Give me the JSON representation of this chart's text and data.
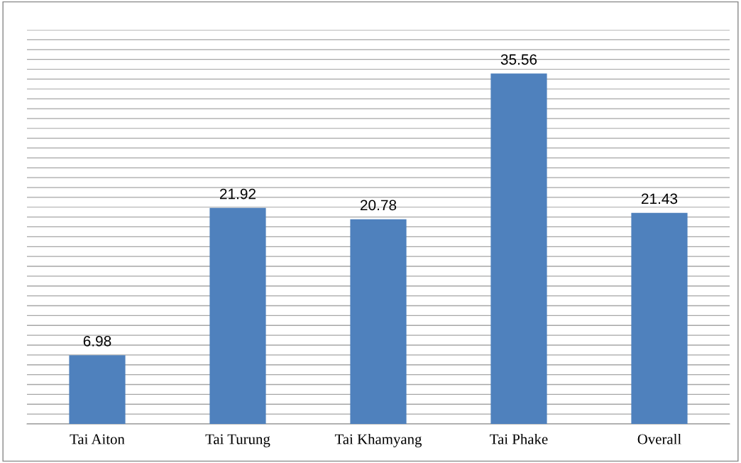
{
  "chart_data": {
    "type": "bar",
    "categories": [
      "Tai Aiton",
      "Tai Turung",
      "Tai Khamyang",
      "Tai Phake",
      "Overall"
    ],
    "values": [
      6.98,
      21.92,
      20.78,
      35.56,
      21.43
    ],
    "color": "#4f81bd",
    "data_labels": true,
    "grid": "y",
    "ylim": [
      0,
      40
    ],
    "yticks": [
      {
        "value": 0,
        "label": null
      },
      {
        "value": 1,
        "label": null
      },
      {
        "value": 2,
        "label": null
      },
      {
        "value": 3,
        "label": null
      },
      {
        "value": 4,
        "label": null
      },
      {
        "value": 5,
        "label": null
      },
      {
        "value": 6,
        "label": null
      },
      {
        "value": 7,
        "label": null
      },
      {
        "value": 8,
        "label": null
      },
      {
        "value": 9,
        "label": null
      },
      {
        "value": 10,
        "label": null
      },
      {
        "value": 11,
        "label": null
      },
      {
        "value": 12,
        "label": null
      },
      {
        "value": 13,
        "label": null
      },
      {
        "value": 14,
        "label": null
      },
      {
        "value": 15,
        "label": null
      },
      {
        "value": 16,
        "label": null
      },
      {
        "value": 17,
        "label": null
      },
      {
        "value": 18,
        "label": null
      },
      {
        "value": 19,
        "label": null
      },
      {
        "value": 20,
        "label": null
      },
      {
        "value": 21,
        "label": null
      },
      {
        "value": 22,
        "label": null
      },
      {
        "value": 23,
        "label": null
      },
      {
        "value": 24,
        "label": null
      },
      {
        "value": 25,
        "label": null
      },
      {
        "value": 26,
        "label": null
      },
      {
        "value": 27,
        "label": null
      },
      {
        "value": 28,
        "label": null
      },
      {
        "value": 29,
        "label": null
      },
      {
        "value": 30,
        "label": null
      },
      {
        "value": 31,
        "label": null
      },
      {
        "value": 32,
        "label": null
      },
      {
        "value": 33,
        "label": null
      },
      {
        "value": 34,
        "label": null
      },
      {
        "value": 35,
        "label": null
      },
      {
        "value": 36,
        "label": null
      },
      {
        "value": 37,
        "label": null
      },
      {
        "value": 38,
        "label": null
      },
      {
        "value": 39,
        "label": null
      },
      {
        "value": 40,
        "label": null
      }
    ],
    "tick_labels": "x"
  }
}
